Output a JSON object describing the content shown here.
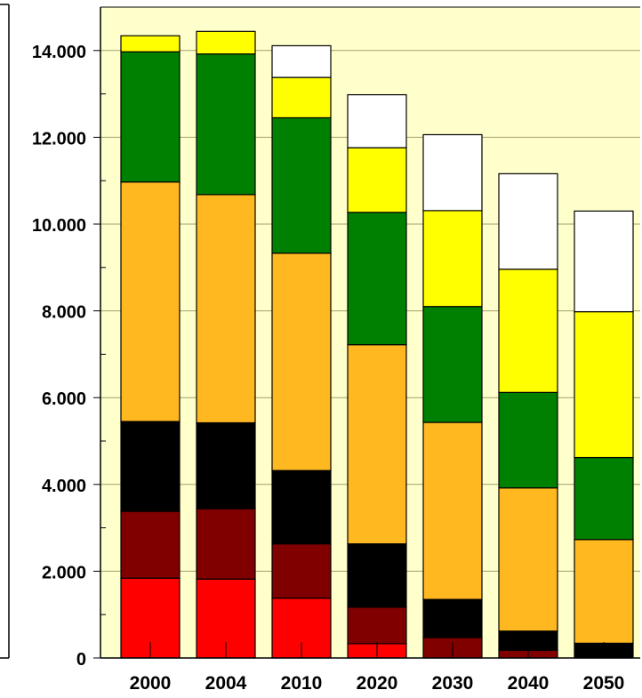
{
  "chart_data": {
    "type": "bar",
    "stacked": true,
    "categories": [
      "2000",
      "2004",
      "2010",
      "2020",
      "2030",
      "2040",
      "2050"
    ],
    "series": [
      {
        "color": "#ff0000",
        "values": [
          1840,
          1820,
          1380,
          330,
          0,
          0,
          0
        ]
      },
      {
        "color": "#800000",
        "values": [
          1540,
          1620,
          1250,
          840,
          470,
          180,
          0
        ]
      },
      {
        "color": "#000000",
        "values": [
          2070,
          1980,
          1690,
          1460,
          880,
          440,
          340
        ]
      },
      {
        "color": "#ffb820",
        "values": [
          5520,
          5260,
          5010,
          4590,
          4080,
          3300,
          2390
        ]
      },
      {
        "color": "#008000",
        "values": [
          3000,
          3240,
          3120,
          3050,
          2670,
          2200,
          1890
        ]
      },
      {
        "color": "#ffff00",
        "values": [
          370,
          520,
          930,
          1490,
          2210,
          2840,
          3360
        ]
      },
      {
        "color": "#ffffff",
        "values": [
          0,
          0,
          730,
          1220,
          1750,
          2200,
          2320
        ]
      }
    ],
    "ylim": [
      0,
      15000
    ],
    "y_ticks": [
      "0",
      "2.000",
      "4.000",
      "6.000",
      "8.000",
      "10.000",
      "12.000",
      "14.000"
    ],
    "y_tick_values": [
      0,
      2000,
      4000,
      6000,
      8000,
      10000,
      12000,
      14000
    ],
    "y_minor_step": 1000,
    "grid": true,
    "plot_background": "#ffffcc",
    "grid_color": "#a0a070",
    "xlabel": "",
    "ylabel": "",
    "title": ""
  }
}
